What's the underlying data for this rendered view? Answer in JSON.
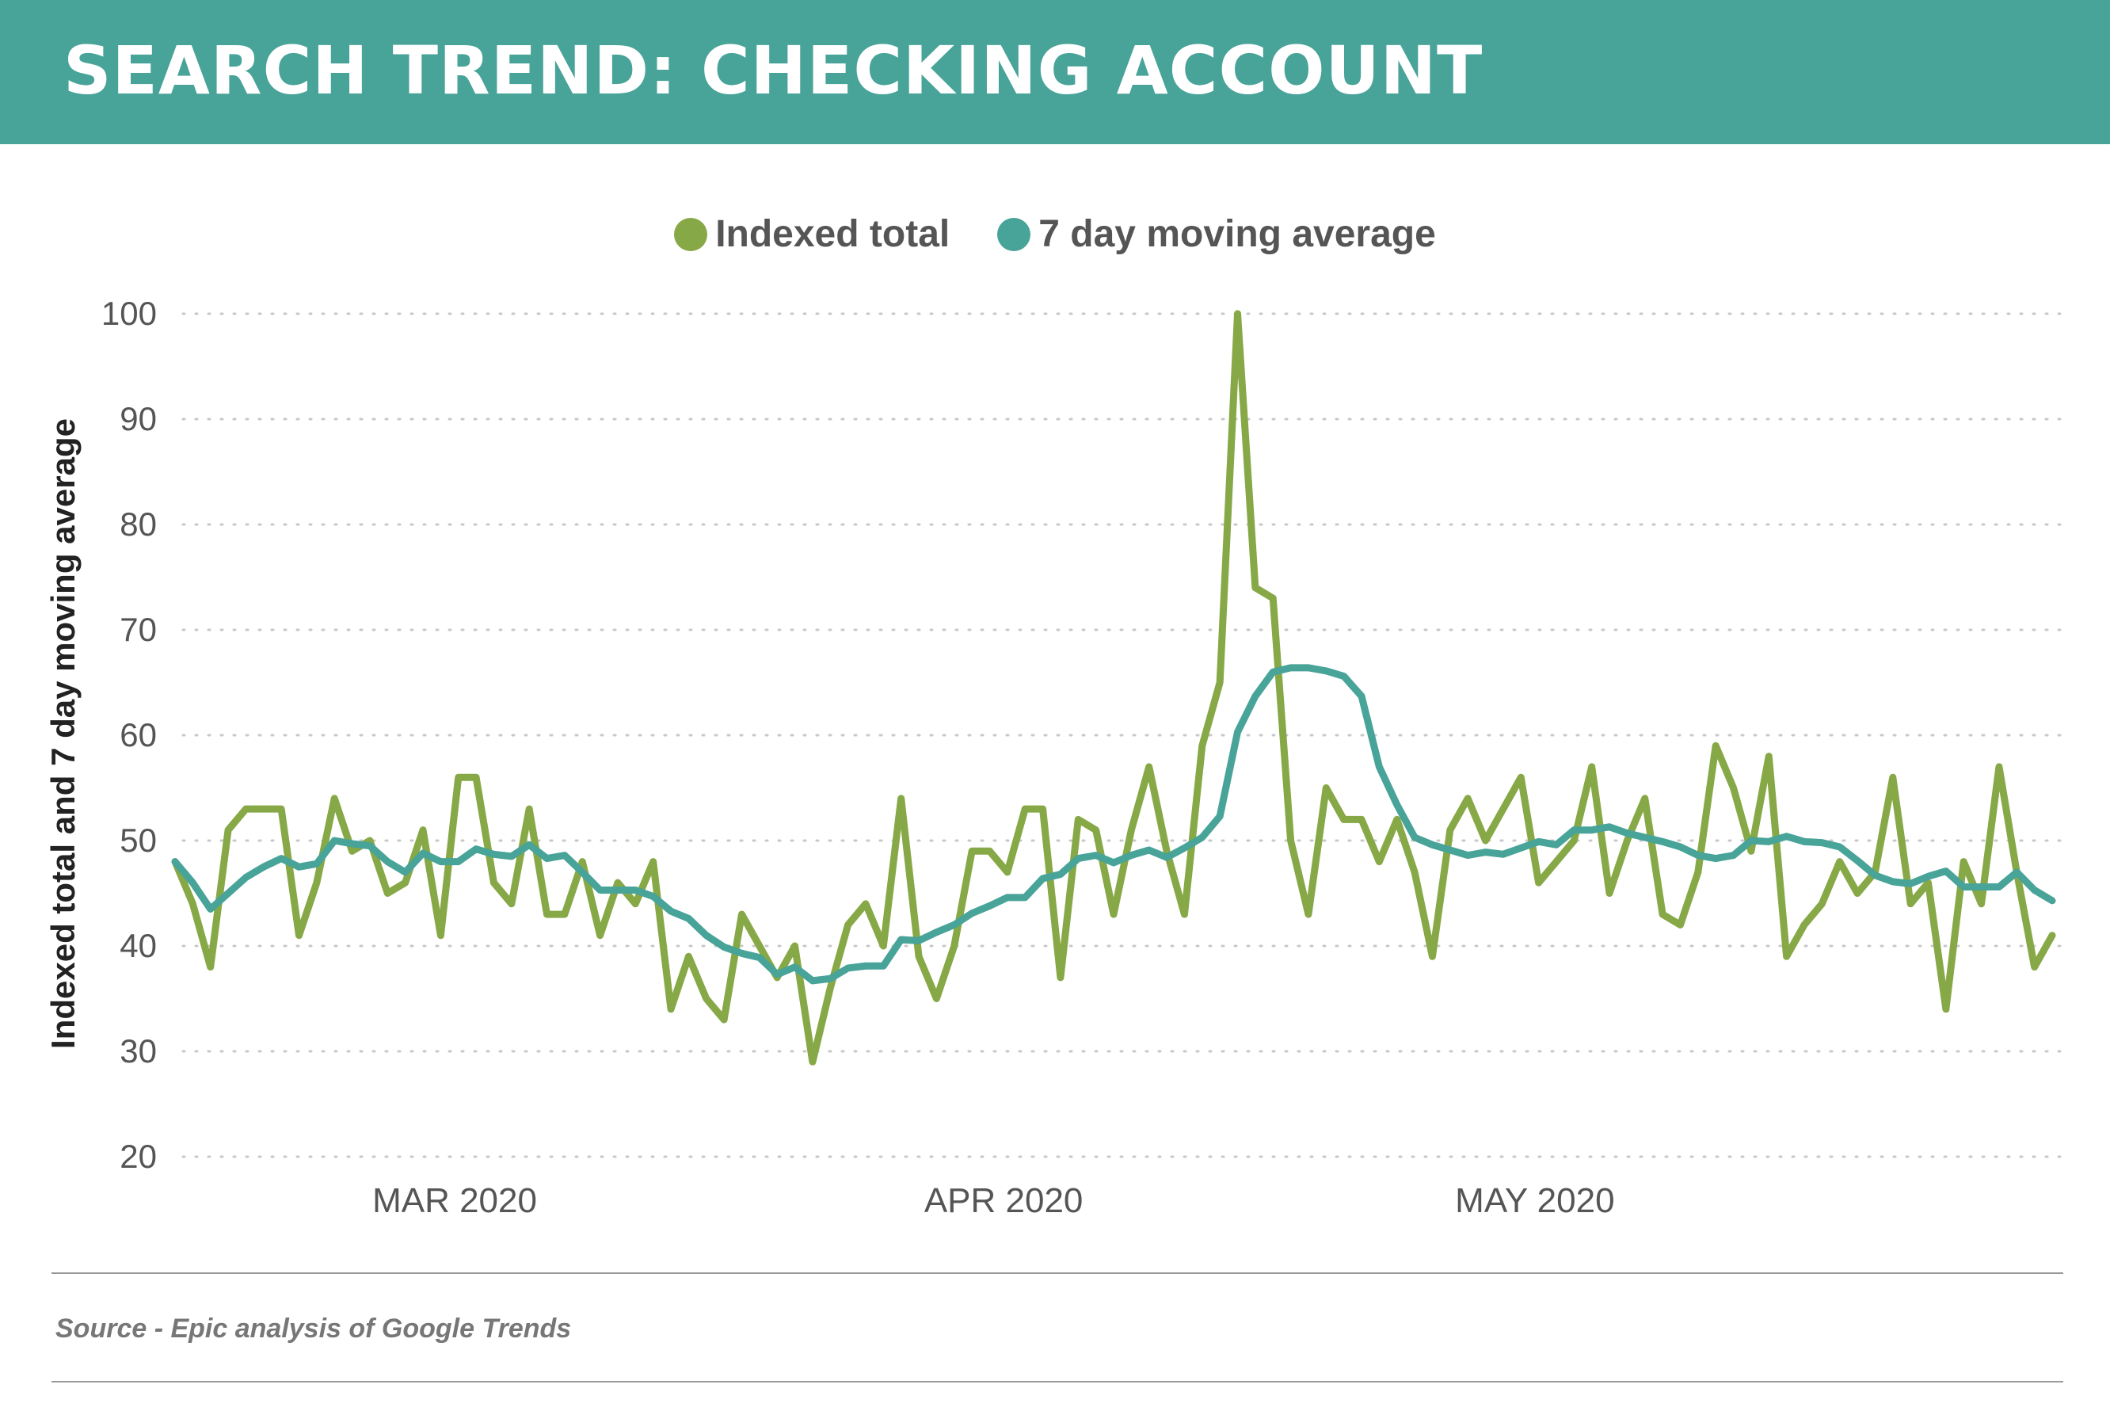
{
  "header": {
    "title": "SEARCH TREND: CHECKING ACCOUNT"
  },
  "footer": {
    "source": "Source - Epic analysis of Google Trends"
  },
  "colors": {
    "header": "#48A398",
    "indexed_total": "#87A846",
    "moving_average": "#48A398"
  },
  "chart_data": {
    "type": "line",
    "title": "",
    "xlabel": "",
    "ylabel": "Indexed total and 7 day moving average",
    "ylim": [
      20,
      100
    ],
    "yticks": [
      20,
      30,
      40,
      50,
      60,
      70,
      80,
      90,
      100
    ],
    "x_start": "2020-02-16",
    "x_end": "2020-06-01",
    "x_ticks": [
      {
        "label": "MAR 2020",
        "date": "2020-03-01"
      },
      {
        "label": "APR 2020",
        "date": "2020-04-01"
      },
      {
        "label": "MAY 2020",
        "date": "2020-05-01"
      }
    ],
    "grid": "horizontal dotted",
    "legend": "top-center",
    "series": [
      {
        "name": "Indexed total",
        "color": "#87A846",
        "values": [
          48,
          44,
          38,
          51,
          53,
          53,
          53,
          41,
          46,
          54,
          49,
          50,
          45,
          46,
          51,
          41,
          56,
          56,
          46,
          44,
          53,
          43,
          43,
          48,
          41,
          46,
          44,
          48,
          34,
          39,
          35,
          33,
          43,
          40,
          37,
          40,
          29,
          36,
          42,
          44,
          40,
          54,
          39,
          35,
          40,
          49,
          49,
          47,
          53,
          53,
          37,
          52,
          51,
          43,
          51,
          57,
          49,
          43,
          59,
          65,
          100,
          74,
          73,
          50,
          43,
          55,
          52,
          52,
          48,
          52,
          47,
          39,
          51,
          54,
          50,
          53,
          56,
          46,
          48,
          50,
          57,
          45,
          50,
          54,
          43,
          42,
          47,
          59,
          55,
          49,
          58,
          39,
          42,
          44,
          48,
          45,
          47,
          56,
          44,
          46,
          34,
          48,
          44,
          57,
          47,
          38,
          41
        ]
      },
      {
        "name": "7 day moving average",
        "color": "#48A398",
        "values": [
          48,
          46,
          43.5,
          45,
          46.5,
          47.5,
          48.3,
          47.5,
          47.8,
          50,
          49.7,
          49.5,
          48,
          47,
          48.8,
          48,
          48,
          49.2,
          48.7,
          48.5,
          49.6,
          48.3,
          48.6,
          47,
          45.3,
          45.3,
          45.3,
          44.7,
          43.3,
          42.6,
          41,
          39.9,
          39.3,
          38.9,
          37.3,
          38,
          36.7,
          36.9,
          37.9,
          38.1,
          38.1,
          40.6,
          40.5,
          41.3,
          42,
          43.1,
          43.8,
          44.6,
          44.6,
          46.4,
          46.8,
          48.3,
          48.6,
          47.9,
          48.6,
          49.1,
          48.4,
          49.3,
          50.3,
          52.3,
          60.3,
          63.7,
          66,
          66.4,
          66.4,
          66.1,
          65.6,
          63.7,
          57,
          53.4,
          50.3,
          49.6,
          49.1,
          48.6,
          48.9,
          48.7,
          49.3,
          49.9,
          49.6,
          51,
          51,
          51.3,
          50.7,
          50.3,
          49.9,
          49.4,
          48.6,
          48.3,
          48.6,
          50,
          49.9,
          50.4,
          49.9,
          49.8,
          49.4,
          48.1,
          46.7,
          46.1,
          45.9,
          46.6,
          47.1,
          45.6,
          45.6,
          45.6,
          47,
          45.3,
          44.3
        ]
      }
    ]
  }
}
